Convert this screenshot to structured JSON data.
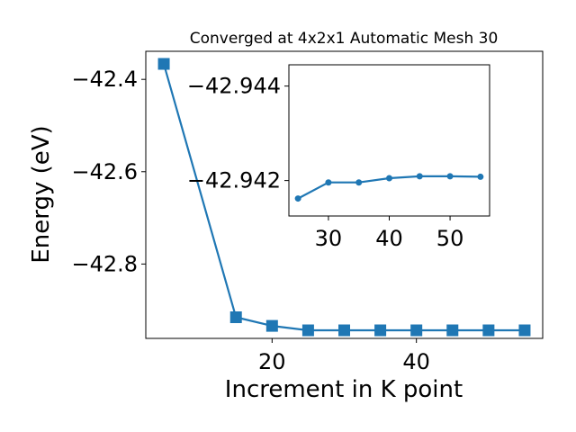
{
  "chart_data": [
    {
      "type": "line",
      "title": "Converged at 4x2x1 Automatic Mesh 30",
      "xlabel": "Increment in K point",
      "ylabel": "Energy (eV)",
      "marker": "square",
      "color": "#1f77b4",
      "x": [
        5,
        15,
        20,
        25,
        30,
        35,
        40,
        45,
        50,
        55
      ],
      "y": [
        -42.3665,
        -42.9153,
        -42.934,
        -42.9436,
        -42.9436,
        -42.9436,
        -42.9436,
        -42.9436,
        -42.9436,
        -42.9436
      ],
      "xlim": [
        2.5,
        57.5
      ],
      "ylim": [
        -42.9611,
        -42.3392
      ],
      "xticks": [
        20,
        40
      ],
      "yticks": [
        -42.4,
        -42.6,
        -42.8
      ],
      "xtick_labels": [
        "20",
        "40"
      ],
      "ytick_labels": [
        "−42.4",
        "−42.6",
        "−42.8"
      ],
      "grid": false,
      "legend": false
    },
    {
      "type": "line",
      "title": "",
      "xlabel": "",
      "ylabel": "",
      "marker": "circle",
      "color": "#1f77b4",
      "x": [
        25,
        30,
        35,
        40,
        45,
        50,
        55
      ],
      "y": [
        -42.94162,
        -42.94196,
        -42.94196,
        -42.94205,
        -42.94209,
        -42.94209,
        -42.94208
      ],
      "xlim": [
        23.5,
        56.5
      ],
      "ylim": [
        -42.94125,
        -42.94445
      ],
      "xticks": [
        30,
        40,
        50
      ],
      "yticks": [
        -42.944,
        -42.942
      ],
      "xtick_labels": [
        "30",
        "40",
        "50"
      ],
      "ytick_labels": [
        "−42.944",
        "−42.942"
      ],
      "grid": false,
      "legend": false
    }
  ]
}
